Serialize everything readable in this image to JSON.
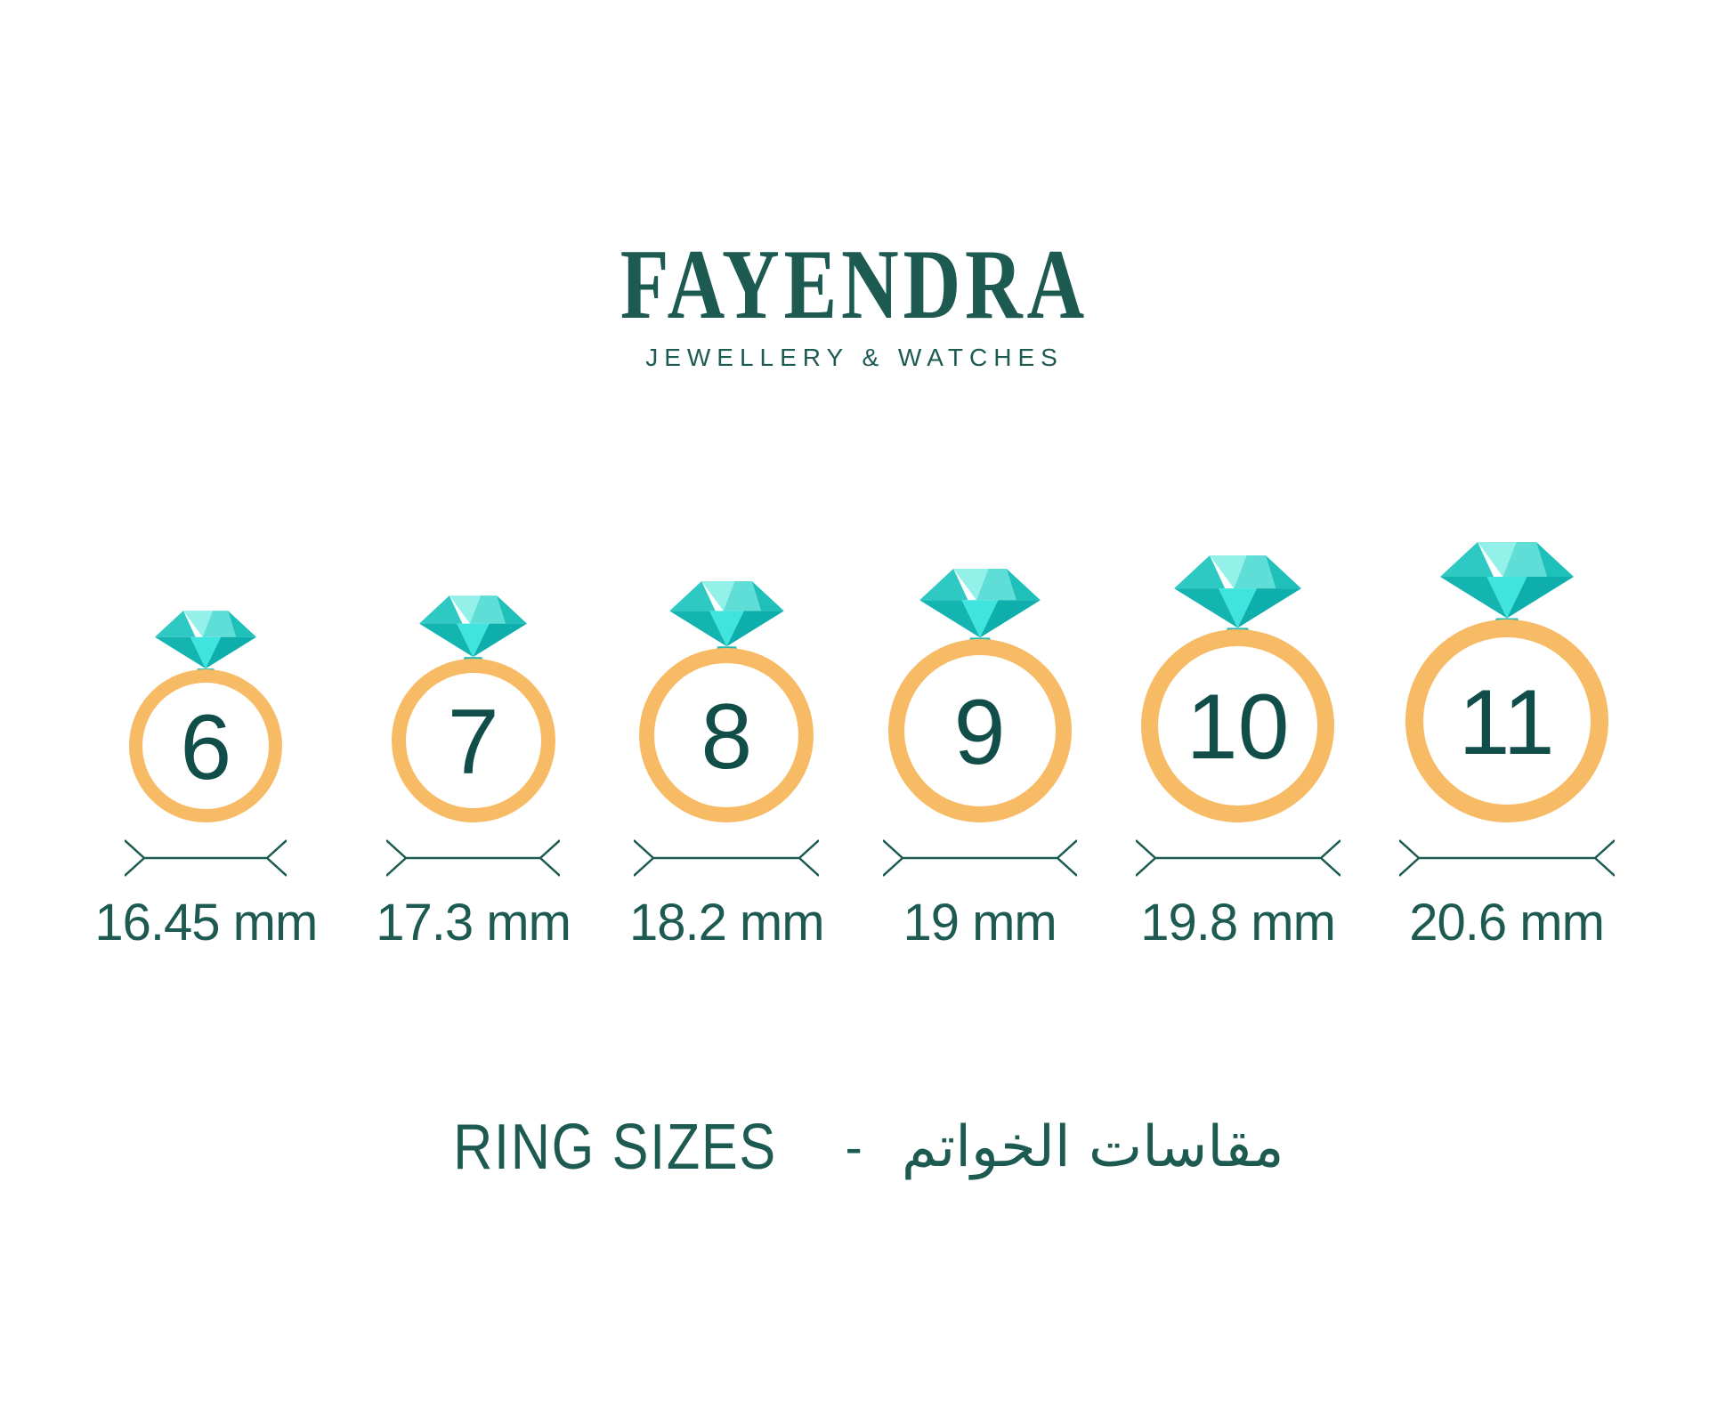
{
  "logo": {
    "brand": "FAYENDRA",
    "tagline": "JEWELLERY & WATCHES"
  },
  "rings": [
    {
      "size": "6",
      "diameter_label": "16.45 mm"
    },
    {
      "size": "7",
      "diameter_label": "17.3 mm"
    },
    {
      "size": "8",
      "diameter_label": "18.2 mm"
    },
    {
      "size": "9",
      "diameter_label": "19 mm"
    },
    {
      "size": "10",
      "diameter_label": "19.8 mm"
    },
    {
      "size": "11",
      "diameter_label": "20.6 mm"
    }
  ],
  "title": {
    "en": "RING SIZES",
    "separator": "-",
    "ar": "مقاسات الخواتم"
  },
  "colors": {
    "text_teal": "#1C5A52",
    "number_teal": "#124E49",
    "band_orange": "#F7BB66",
    "diamond_crown_left": "#2FC9C3",
    "diamond_crown_center": "#93F1EA",
    "diamond_crown_right": "#5FDED7",
    "diamond_crown_far_right": "#1FBFBA",
    "diamond_pavilion_left": "#14B5B1",
    "diamond_pavilion_center": "#3FE4DE",
    "diamond_pavilion_right": "#0DAEAB",
    "diamond_mount": "#2ABAB6"
  }
}
